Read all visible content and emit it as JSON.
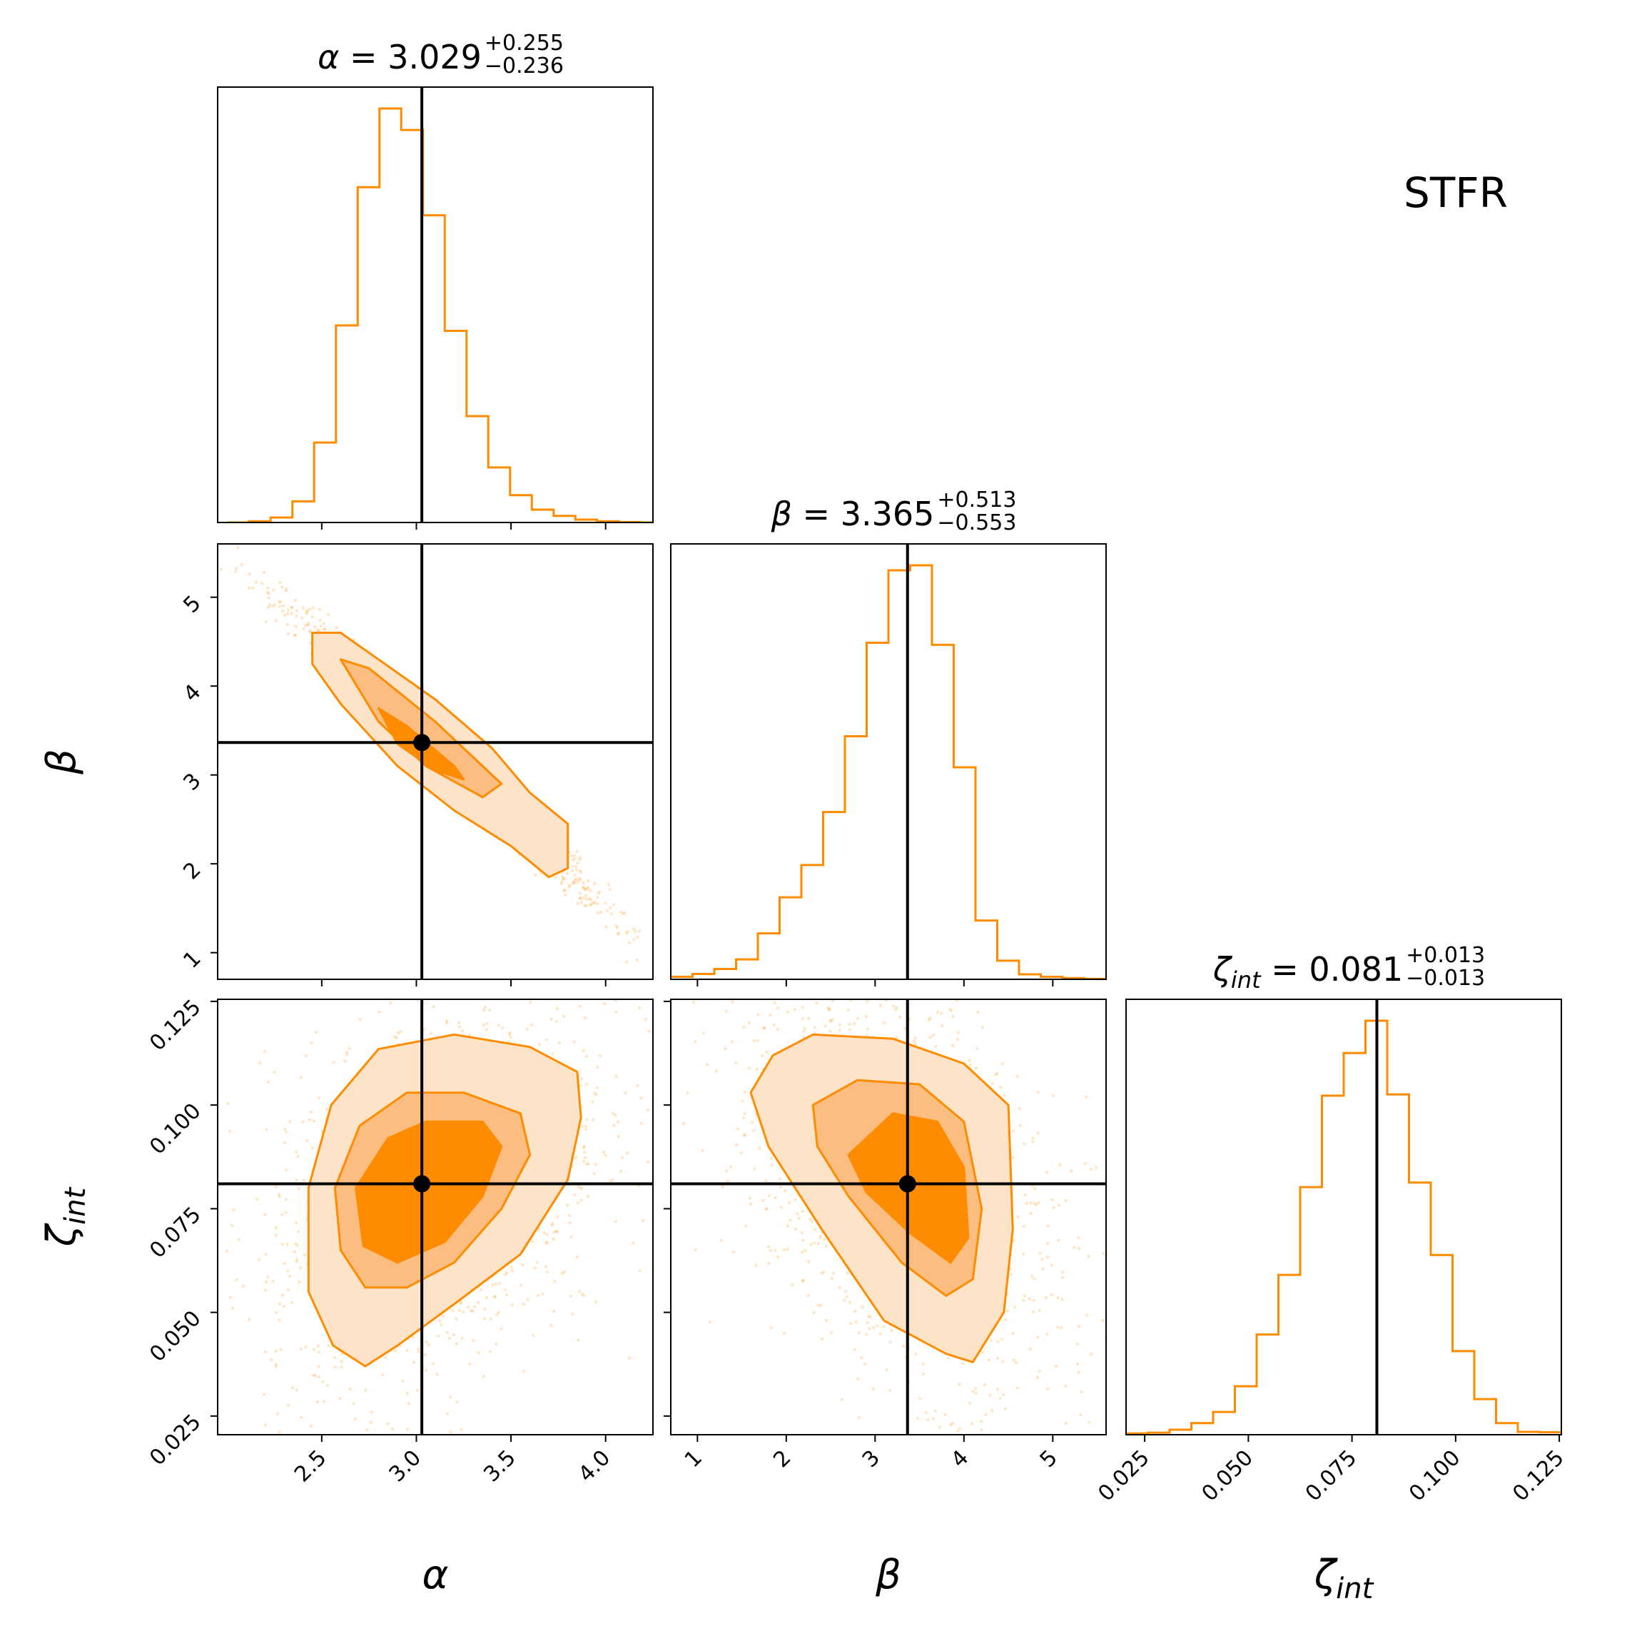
{
  "chart_data": {
    "type": "scatter",
    "subtype": "corner plot",
    "label": "STFR",
    "color": "#ff8c00",
    "truth_color": "#000000",
    "parameters": [
      {
        "key": "alpha",
        "symbol": "α",
        "sub": "",
        "median": "3.029",
        "plus": "+0.255",
        "minus": "−0.236",
        "truth": 3.029,
        "range": [
          1.95,
          4.25
        ]
      },
      {
        "key": "beta",
        "symbol": "β",
        "sub": "",
        "median": "3.365",
        "plus": "+0.513",
        "minus": "−0.553",
        "truth": 3.365,
        "range": [
          0.7,
          5.6
        ]
      },
      {
        "key": "zeta",
        "symbol": "ζ",
        "sub": "int",
        "median": "0.081",
        "plus": "+0.013",
        "minus": "−0.013",
        "truth": 0.081,
        "range": [
          0.0205,
          0.1255
        ]
      }
    ],
    "tick_labels": {
      "alpha": [
        "2.5",
        "3.0",
        "3.5",
        "4.0"
      ],
      "beta": [
        "1",
        "2",
        "3",
        "4",
        "5"
      ],
      "zeta": [
        "0.025",
        "0.050",
        "0.075",
        "0.100",
        "0.125"
      ]
    },
    "hist_alpha": {
      "bin_edges": [
        2.0,
        2.115,
        2.23,
        2.345,
        2.46,
        2.575,
        2.69,
        2.805,
        2.92,
        3.035,
        3.15,
        3.265,
        3.38,
        3.495,
        3.61,
        3.725,
        3.84,
        3.955,
        4.07,
        4.185,
        4.3
      ],
      "counts": [
        0,
        0.003,
        0.012,
        0.051,
        0.193,
        0.476,
        0.81,
        1.0,
        0.948,
        0.742,
        0.463,
        0.257,
        0.133,
        0.066,
        0.031,
        0.016,
        0.007,
        0.003,
        0.001,
        0
      ]
    },
    "hist_beta": {
      "bin_edges": [
        0.7,
        0.945,
        1.19,
        1.435,
        1.68,
        1.925,
        2.17,
        2.415,
        2.66,
        2.905,
        3.15,
        3.395,
        3.64,
        3.885,
        4.13,
        4.375,
        4.62,
        4.865,
        5.11,
        5.355,
        5.6
      ],
      "counts": [
        0.006,
        0.013,
        0.025,
        0.048,
        0.111,
        0.198,
        0.276,
        0.404,
        0.587,
        0.813,
        0.988,
        1.0,
        0.808,
        0.512,
        0.142,
        0.045,
        0.012,
        0.006,
        0.003,
        0.001
      ]
    },
    "hist_zeta": {
      "bin_edges": [
        0.0205,
        0.02575,
        0.031,
        0.03625,
        0.0415,
        0.04675,
        0.052,
        0.05725,
        0.0625,
        0.06775,
        0.073,
        0.07825,
        0.0835,
        0.08875,
        0.094,
        0.09925,
        0.1045,
        0.10975,
        0.115,
        0.12025,
        0.1255
      ],
      "counts": [
        0.003,
        0.005,
        0.012,
        0.028,
        0.055,
        0.117,
        0.242,
        0.386,
        0.598,
        0.819,
        0.922,
        1.0,
        0.822,
        0.609,
        0.434,
        0.202,
        0.086,
        0.028,
        0.007,
        0.006
      ]
    },
    "contours_alpha_beta": [
      {
        "level": "outer",
        "points": [
          [
            2.45,
            4.6
          ],
          [
            2.6,
            4.6
          ],
          [
            3.1,
            3.85
          ],
          [
            3.4,
            3.3
          ],
          [
            3.6,
            2.8
          ],
          [
            3.8,
            2.45
          ],
          [
            3.8,
            1.95
          ],
          [
            3.7,
            1.85
          ],
          [
            3.5,
            2.2
          ],
          [
            3.2,
            2.6
          ],
          [
            2.9,
            3.1
          ],
          [
            2.6,
            3.8
          ],
          [
            2.45,
            4.25
          ]
        ]
      },
      {
        "level": "middle",
        "points": [
          [
            2.6,
            4.3
          ],
          [
            2.75,
            4.2
          ],
          [
            3.1,
            3.6
          ],
          [
            3.45,
            2.9
          ],
          [
            3.35,
            2.75
          ],
          [
            3.05,
            3.1
          ],
          [
            2.8,
            3.6
          ]
        ]
      },
      {
        "level": "inner",
        "points": [
          [
            2.8,
            3.75
          ],
          [
            2.95,
            3.55
          ],
          [
            3.2,
            3.1
          ],
          [
            3.25,
            2.95
          ],
          [
            3.1,
            3.05
          ],
          [
            2.9,
            3.35
          ]
        ]
      }
    ],
    "contours_alpha_zeta": [
      {
        "level": "outer",
        "points": [
          [
            2.43,
            0.08
          ],
          [
            2.55,
            0.1
          ],
          [
            2.8,
            0.1135
          ],
          [
            3.2,
            0.117
          ],
          [
            3.6,
            0.114
          ],
          [
            3.85,
            0.108
          ],
          [
            3.87,
            0.097
          ],
          [
            3.8,
            0.082
          ],
          [
            3.55,
            0.064
          ],
          [
            3.2,
            0.052
          ],
          [
            2.9,
            0.042
          ],
          [
            2.73,
            0.037
          ],
          [
            2.56,
            0.042
          ],
          [
            2.43,
            0.055
          ]
        ]
      },
      {
        "level": "middle",
        "points": [
          [
            2.57,
            0.08
          ],
          [
            2.7,
            0.095
          ],
          [
            2.95,
            0.103
          ],
          [
            3.25,
            0.103
          ],
          [
            3.55,
            0.098
          ],
          [
            3.6,
            0.088
          ],
          [
            3.45,
            0.075
          ],
          [
            3.2,
            0.062
          ],
          [
            2.95,
            0.056
          ],
          [
            2.73,
            0.056
          ],
          [
            2.6,
            0.065
          ]
        ]
      },
      {
        "level": "inner",
        "points": [
          [
            2.68,
            0.08
          ],
          [
            2.85,
            0.092
          ],
          [
            3.05,
            0.096
          ],
          [
            3.35,
            0.096
          ],
          [
            3.45,
            0.09
          ],
          [
            3.35,
            0.078
          ],
          [
            3.15,
            0.067
          ],
          [
            2.9,
            0.062
          ],
          [
            2.72,
            0.066
          ]
        ]
      }
    ],
    "contours_beta_zeta": [
      {
        "level": "outer",
        "points": [
          [
            1.6,
            0.103
          ],
          [
            1.85,
            0.112
          ],
          [
            2.3,
            0.117
          ],
          [
            3.2,
            0.116
          ],
          [
            4.0,
            0.11
          ],
          [
            4.5,
            0.1
          ],
          [
            4.55,
            0.07
          ],
          [
            4.45,
            0.05
          ],
          [
            4.1,
            0.038
          ],
          [
            3.8,
            0.04
          ],
          [
            3.1,
            0.048
          ],
          [
            2.4,
            0.07
          ],
          [
            1.8,
            0.09
          ]
        ]
      },
      {
        "level": "middle",
        "points": [
          [
            2.3,
            0.1
          ],
          [
            2.8,
            0.106
          ],
          [
            3.5,
            0.105
          ],
          [
            4.0,
            0.096
          ],
          [
            4.2,
            0.075
          ],
          [
            4.1,
            0.058
          ],
          [
            3.8,
            0.054
          ],
          [
            3.3,
            0.062
          ],
          [
            2.7,
            0.078
          ],
          [
            2.35,
            0.09
          ]
        ]
      },
      {
        "level": "inner",
        "points": [
          [
            2.7,
            0.088
          ],
          [
            3.2,
            0.098
          ],
          [
            3.7,
            0.096
          ],
          [
            4.0,
            0.085
          ],
          [
            4.05,
            0.068
          ],
          [
            3.85,
            0.062
          ],
          [
            3.4,
            0.069
          ],
          [
            2.9,
            0.079
          ]
        ]
      }
    ]
  }
}
